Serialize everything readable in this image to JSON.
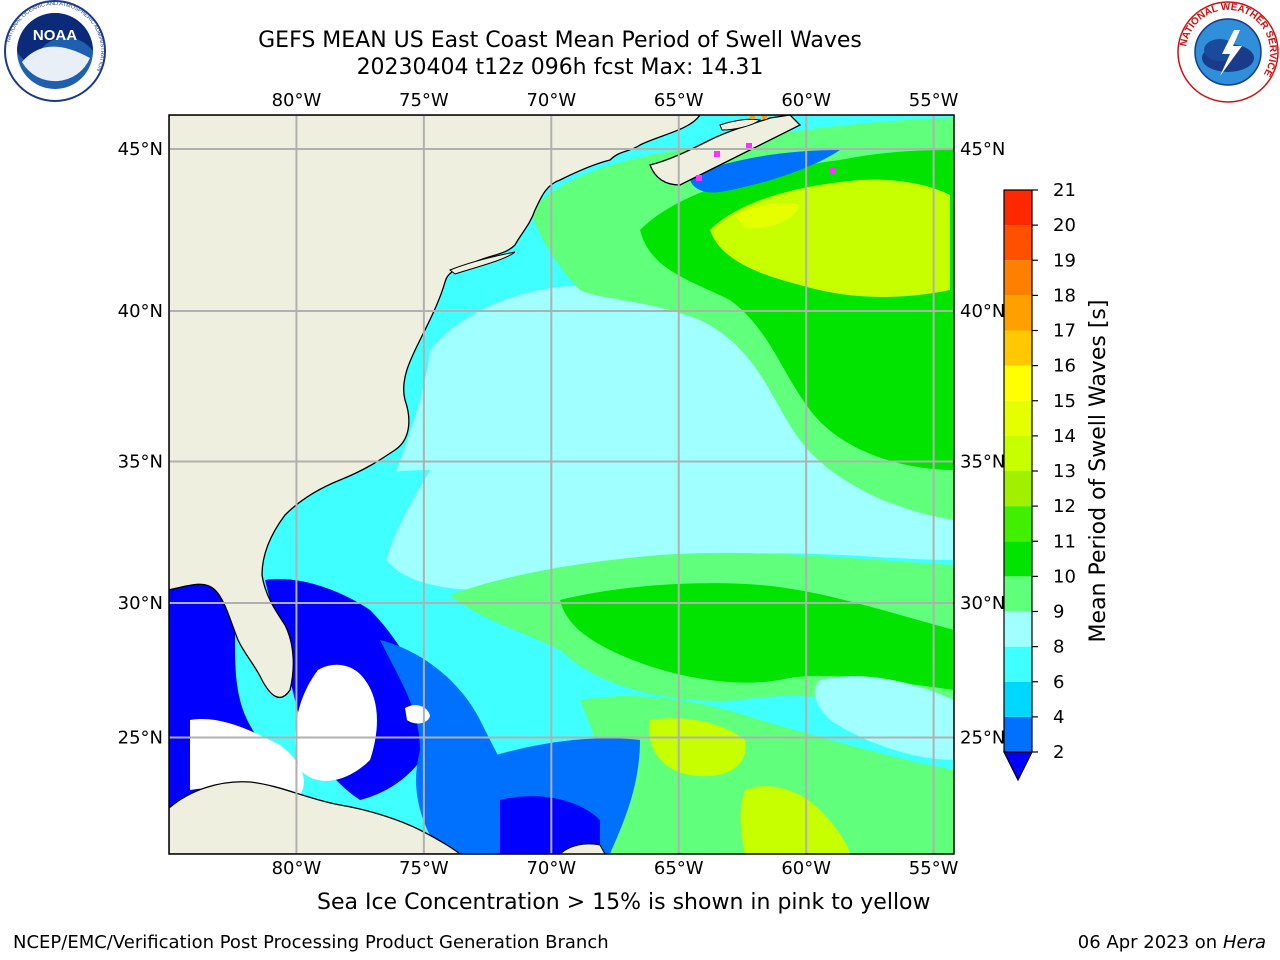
{
  "title": {
    "line1": "GEFS MEAN US East Coast Mean Period of Swell Waves",
    "line2": "20230404 t12z 096h fcst   Max: 14.31"
  },
  "map": {
    "lon_labels": [
      "80°W",
      "75°W",
      "70°W",
      "65°W",
      "60°W",
      "55°W"
    ],
    "lon_values": [
      -80,
      -75,
      -70,
      -65,
      -60,
      -55
    ],
    "lat_labels": [
      "45°N",
      "40°N",
      "35°N",
      "30°N",
      "25°N"
    ],
    "lat_values": [
      45,
      40,
      35,
      30,
      25
    ],
    "extent": {
      "lon_min": -85,
      "lon_max": -54.2,
      "lat_min": 20.5,
      "lat_max": 46
    },
    "land_color": "#efefdf",
    "grid_color": "#b0b0b0"
  },
  "colorbar": {
    "label": "Mean Period of Swell Waves [s]",
    "ticks": [
      "2",
      "4",
      "6",
      "8",
      "9",
      "10",
      "11",
      "12",
      "13",
      "14",
      "15",
      "16",
      "17",
      "18",
      "19",
      "20",
      "21"
    ],
    "colors": [
      "#0070ff",
      "#00d7ff",
      "#40ffff",
      "#a0ffff",
      "#60ff7c",
      "#00e400",
      "#40f000",
      "#a0f000",
      "#c8ff00",
      "#e6ff00",
      "#ffff00",
      "#ffc800",
      "#ffa000",
      "#ff8000",
      "#ff5000",
      "#ff2800"
    ],
    "under_color": "#0000ff"
  },
  "note": "Sea Ice Concentration > 15% is shown in pink to yellow",
  "footer": {
    "left": "NCEP/EMC/Verification Post Processing Product Generation Branch",
    "date": "06 Apr 2023 on ",
    "machine": "Hera"
  },
  "logos": {
    "noaa": "NOAA",
    "nws": "NATIONAL WEATHER SERVICE",
    "noaa_ring": "NATIONAL OCEANIC AND ATMOSPHERIC ADMINISTRATION"
  }
}
